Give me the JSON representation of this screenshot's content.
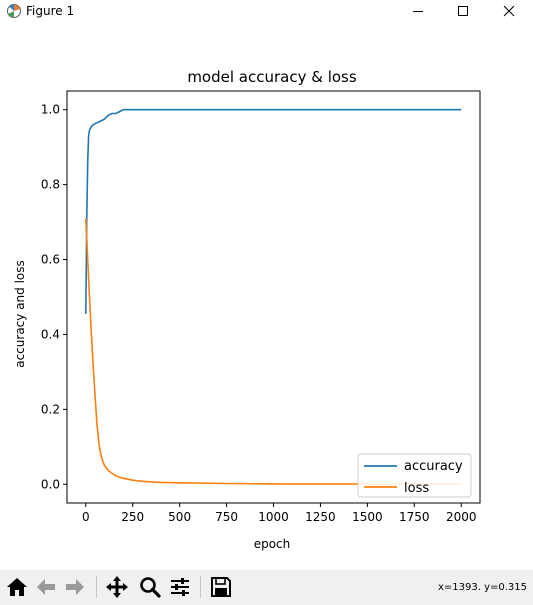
{
  "window": {
    "title": "Figure 1",
    "app_icon": "matplotlib-icon",
    "controls": [
      "minimize-icon",
      "maximize-icon",
      "close-icon"
    ]
  },
  "toolbar": {
    "buttons": [
      "home-icon",
      "back-arrow-icon",
      "forward-arrow-icon",
      "pan-icon",
      "zoom-icon",
      "configure-subplots-icon",
      "save-icon"
    ],
    "coordinates": "x=1393. y=0.315"
  },
  "chart_data": {
    "type": "line",
    "title": "model accuracy & loss",
    "xlabel": "epoch",
    "ylabel": "accuracy and loss",
    "xlim": [
      -100,
      2100
    ],
    "ylim": [
      -0.05,
      1.05
    ],
    "xticks": [
      0,
      250,
      500,
      750,
      1000,
      1250,
      1500,
      1750,
      2000
    ],
    "yticks": [
      0.0,
      0.2,
      0.4,
      0.6,
      0.8,
      1.0
    ],
    "xtick_labels": [
      "0",
      "250",
      "500",
      "750",
      "1000",
      "1250",
      "1500",
      "1750",
      "2000"
    ],
    "ytick_labels": [
      "0.0",
      "0.2",
      "0.4",
      "0.6",
      "0.8",
      "1.0"
    ],
    "grid": false,
    "legend": {
      "position": "lower-right"
    },
    "series": [
      {
        "name": "accuracy",
        "color": "#1f77b4",
        "x": [
          0,
          5,
          10,
          15,
          20,
          30,
          40,
          60,
          80,
          100,
          120,
          140,
          160,
          180,
          200,
          250,
          500,
          1000,
          1500,
          2000
        ],
        "y": [
          0.455,
          0.7,
          0.86,
          0.93,
          0.945,
          0.955,
          0.96,
          0.965,
          0.97,
          0.975,
          0.985,
          0.99,
          0.99,
          0.995,
          1.0,
          1.0,
          1.0,
          1.0,
          1.0,
          1.0
        ]
      },
      {
        "name": "loss",
        "color": "#ff7f0e",
        "x": [
          0,
          5,
          10,
          20,
          30,
          40,
          50,
          60,
          70,
          80,
          90,
          100,
          120,
          140,
          160,
          180,
          200,
          250,
          300,
          400,
          500,
          750,
          1000,
          1500,
          2000
        ],
        "y": [
          0.71,
          0.66,
          0.6,
          0.5,
          0.4,
          0.31,
          0.23,
          0.16,
          0.11,
          0.08,
          0.062,
          0.05,
          0.037,
          0.029,
          0.023,
          0.019,
          0.016,
          0.011,
          0.008,
          0.005,
          0.004,
          0.002,
          0.001,
          0.0005,
          0.0003
        ]
      }
    ]
  }
}
